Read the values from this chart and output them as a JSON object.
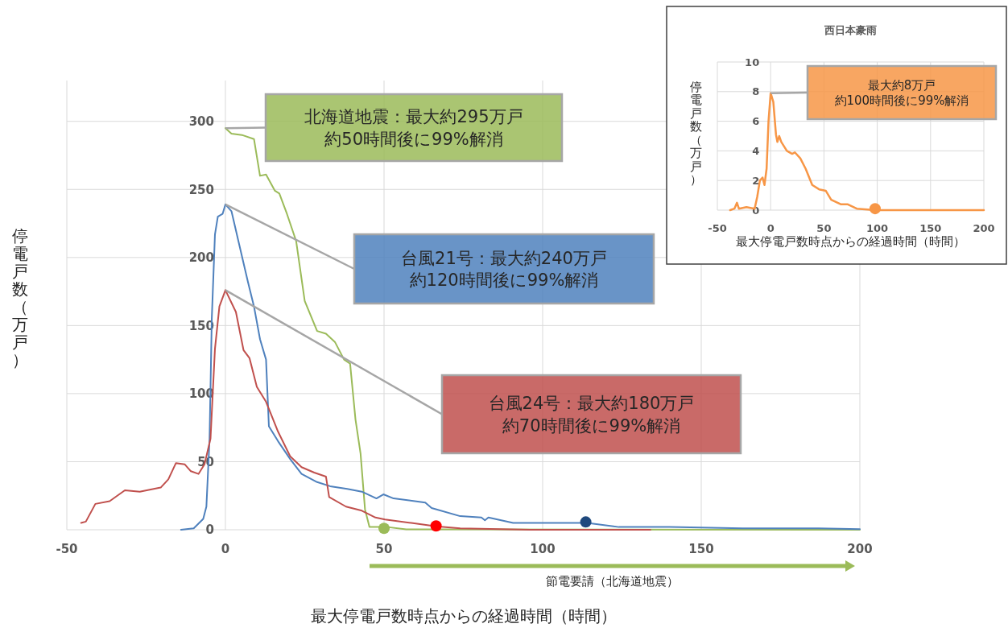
{
  "chart_data": [
    {
      "type": "line",
      "xlabel": "最大停電戸数時点からの経過時間（時間）",
      "ylabel": "停電戸数（万戸）",
      "xlim": [
        -50,
        200
      ],
      "ylim": [
        0,
        330
      ],
      "xticks": [
        -50,
        0,
        50,
        100,
        150,
        200
      ],
      "yticks": [
        0,
        50,
        100,
        150,
        200,
        250,
        300
      ],
      "grid": true,
      "series": [
        {
          "color": "#9bbb59",
          "x": [
            0,
            1.9,
            5.2,
            9,
            10.9,
            12.8,
            15.6,
            17,
            19.4,
            22.3,
            25,
            28.9,
            31.7,
            34.5,
            37.4,
            39.3,
            41,
            42.6,
            44,
            45.4,
            48,
            51,
            57,
            200
          ],
          "values": [
            295,
            291,
            290,
            287,
            260,
            261,
            249,
            247,
            232,
            212,
            168,
            146,
            144,
            138,
            125,
            122,
            81,
            56,
            15,
            2,
            2,
            2,
            0.3,
            0
          ]
        },
        {
          "color": "#4f81bd",
          "x": [
            -14,
            -10,
            -7,
            -6,
            -5,
            -4.3,
            -3.3,
            -2.4,
            -0.9,
            0,
            1.9,
            4.3,
            7.1,
            9,
            10.9,
            12.8,
            13.7,
            16.6,
            20.4,
            24,
            28.9,
            33,
            38.4,
            43,
            47.6,
            49.8,
            53,
            63,
            65,
            74,
            80.7,
            81.8,
            82.9,
            90.7,
            101.8,
            114,
            124,
            140,
            163,
            187,
            200
          ],
          "values": [
            0,
            1,
            8,
            17,
            67,
            155,
            217,
            230,
            232,
            239,
            234,
            210,
            182,
            164,
            140,
            125,
            76,
            65,
            52,
            41,
            35,
            32,
            30,
            28,
            23,
            26,
            23,
            20,
            16,
            10,
            9,
            7,
            9,
            5,
            5,
            5,
            2,
            2,
            1,
            1,
            0.5
          ]
        },
        {
          "color": "#c0504d",
          "x": [
            -45.5,
            -44,
            -41,
            -36.5,
            -31.7,
            -27,
            -20.4,
            -18,
            -15.6,
            -12.8,
            -10.9,
            -8.5,
            -6.6,
            -4.7,
            -3.3,
            -1.9,
            0,
            3.3,
            5.7,
            7.6,
            9.9,
            12.8,
            16.6,
            20.4,
            24,
            28,
            31.7,
            32.7,
            38,
            43,
            47.3,
            50.3,
            58.6,
            66.4,
            74,
            96,
            134
          ],
          "values": [
            5,
            6,
            19,
            21,
            29,
            28,
            31,
            37,
            49,
            48,
            43,
            41,
            48,
            67,
            133,
            164,
            176,
            160,
            132,
            126,
            105,
            94,
            72,
            54,
            46,
            42,
            39,
            24,
            17,
            14,
            9,
            7.5,
            5,
            2.5,
            1,
            0,
            0
          ]
        },
        {
          "type": "scatter",
          "marker": "circle",
          "x": [
            50,
            66.4,
            113.6
          ],
          "values": [
            1,
            2.8,
            5.7
          ],
          "colors": [
            "#9bbb59",
            "#ff0000",
            "#1f497d"
          ]
        }
      ],
      "annotations": [
        "北海道地震：最大約295万戸",
        "約50時間後に99%解消",
        "台風21号：最大約240万戸",
        "約120時間後に99%解消",
        "台風24号：最大約180万戸",
        "約70時間後に99%解消",
        "節電要請（北海道地震）"
      ]
    },
    {
      "type": "line",
      "title": "西日本豪雨",
      "xlabel": "最大停電戸数時点からの経過時間（時間）",
      "ylabel": "停電戸数（万戸）",
      "xlim": [
        -50,
        200
      ],
      "ylim": [
        0,
        10
      ],
      "xticks": [
        -50,
        0,
        50,
        100,
        150,
        200
      ],
      "yticks": [
        0,
        2,
        4,
        6,
        8,
        10
      ],
      "grid": true,
      "series": [
        {
          "color": "#f79646",
          "x": [
            -38,
            -34,
            -31.6,
            -29.8,
            -22.7,
            -15,
            -12.6,
            -10.1,
            -7.6,
            -5.8,
            -3.8,
            -2,
            0,
            2.5,
            5,
            6.3,
            8,
            10,
            15.2,
            20.2,
            22.7,
            27.8,
            32.8,
            39,
            45.5,
            51.8,
            56.8,
            65.7,
            72,
            80.8,
            98.5,
            200
          ],
          "values": [
            0,
            0.1,
            0.5,
            0.1,
            0.2,
            0.1,
            0.9,
            2,
            2.2,
            1.7,
            2.8,
            6,
            7.9,
            7.3,
            5.1,
            4.6,
            5,
            4.6,
            4,
            3.8,
            3.9,
            3.5,
            2.8,
            1.7,
            1.4,
            1.3,
            0.7,
            0.4,
            0.4,
            0.1,
            0,
            0
          ]
        },
        {
          "type": "scatter",
          "marker": "circle",
          "x": [
            98
          ],
          "values": [
            0.1
          ],
          "colors": [
            "#f79646"
          ]
        }
      ],
      "annotations": [
        "最大約8万戸",
        "約100時間後に99%解消"
      ]
    }
  ]
}
